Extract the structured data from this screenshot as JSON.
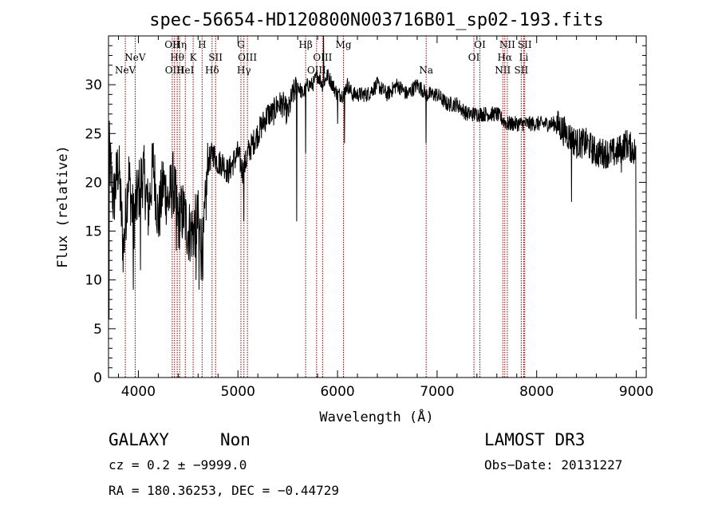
{
  "chart_data": {
    "type": "line",
    "title": "spec-56654-HD120800N003716B01_sp02-193.fits",
    "xlabel": "Wavelength (Å)",
    "ylabel": "Flux (relative)",
    "xlim": [
      3700,
      9100
    ],
    "ylim": [
      0,
      35
    ],
    "x_ticks": [
      4000,
      5000,
      6000,
      7000,
      8000,
      9000
    ],
    "y_ticks": [
      0,
      5,
      10,
      15,
      20,
      25,
      30
    ],
    "grid": false,
    "line_color": "#000000",
    "marker_color": "#8b0000",
    "series": [
      {
        "x": [
          3700,
          3750,
          3800,
          3850,
          3900,
          3950,
          4000,
          4050,
          4100,
          4150,
          4200,
          4250,
          4300,
          4350,
          4400,
          4450,
          4500,
          4550,
          4600,
          4650,
          4700,
          4750,
          4800,
          4850,
          4900,
          4950,
          5000,
          5050,
          5100,
          5150,
          5200,
          5250,
          5300,
          5350,
          5400,
          5450,
          5500,
          5550,
          5600,
          5650,
          5700,
          5750,
          5800,
          5850,
          5900,
          5950,
          6000,
          6050,
          6100,
          6150,
          6200,
          6300,
          6400,
          6500,
          6600,
          6700,
          6800,
          6900,
          7000,
          7100,
          7200,
          7300,
          7400,
          7500,
          7600,
          7700,
          7800,
          7900,
          8000,
          8100,
          8200,
          8300,
          8400,
          8500,
          8600,
          8700,
          8800,
          8900,
          9000
        ],
        "y": [
          24,
          18,
          22,
          13,
          21,
          16,
          19,
          21,
          17,
          22,
          16,
          20,
          18,
          20,
          16,
          17,
          15,
          15,
          16,
          13,
          22,
          23,
          22,
          22,
          21,
          22,
          23,
          21,
          23,
          24,
          25,
          26,
          27,
          27,
          28,
          28,
          27,
          29,
          30,
          29,
          30,
          30,
          31,
          30,
          31,
          30,
          29,
          29,
          30,
          29,
          29,
          29,
          30,
          29,
          30,
          29,
          30,
          29,
          29,
          28,
          28,
          27,
          27,
          27,
          27,
          26,
          26,
          26,
          26,
          26,
          26,
          25,
          24,
          24,
          23,
          23,
          23,
          24,
          23
        ]
      }
    ],
    "spikes": [
      {
        "x": 3705,
        "y": 6
      },
      {
        "x": 3950,
        "y": 9
      },
      {
        "x": 4020,
        "y": 11
      },
      {
        "x": 4380,
        "y": 13
      },
      {
        "x": 4580,
        "y": 10
      },
      {
        "x": 4610,
        "y": 9
      },
      {
        "x": 4630,
        "y": 10
      },
      {
        "x": 5060,
        "y": 16
      },
      {
        "x": 5590,
        "y": 16
      },
      {
        "x": 5680,
        "y": 23
      },
      {
        "x": 5860,
        "y": 35
      },
      {
        "x": 6000,
        "y": 26
      },
      {
        "x": 6070,
        "y": 24
      },
      {
        "x": 6890,
        "y": 24
      },
      {
        "x": 8350,
        "y": 18
      },
      {
        "x": 8850,
        "y": 21
      },
      {
        "x": 9000,
        "y": 6
      }
    ],
    "lines": [
      {
        "x": 3869,
        "label": "NeV"
      },
      {
        "x": 3968,
        "label": "NeV"
      },
      {
        "x": 4340,
        "label": "OII"
      },
      {
        "x": 4363,
        "label": "OIII"
      },
      {
        "x": 4390,
        "label": "Hθ"
      },
      {
        "x": 4415,
        "label": "Hη"
      },
      {
        "x": 4471,
        "label": "HeI"
      },
      {
        "x": 4550,
        "label": "K"
      },
      {
        "x": 4640,
        "label": "H"
      },
      {
        "x": 4740,
        "label": "Hδ"
      },
      {
        "x": 4775,
        "label": "SII"
      },
      {
        "x": 5030,
        "label": "G"
      },
      {
        "x": 5060,
        "label": "Hγ"
      },
      {
        "x": 5095,
        "label": "OIII"
      },
      {
        "x": 5680,
        "label": "Hβ"
      },
      {
        "x": 5790,
        "label": "OIII"
      },
      {
        "x": 5850,
        "label": "OIII"
      },
      {
        "x": 6060,
        "label": "Mg"
      },
      {
        "x": 6890,
        "label": "Na"
      },
      {
        "x": 7370,
        "label": "OI"
      },
      {
        "x": 7430,
        "label": "OI"
      },
      {
        "x": 7660,
        "label": "NII"
      },
      {
        "x": 7680,
        "label": "Hα"
      },
      {
        "x": 7705,
        "label": "NII"
      },
      {
        "x": 7845,
        "label": "SII"
      },
      {
        "x": 7870,
        "label": "Li"
      },
      {
        "x": 7880,
        "label": "SII"
      }
    ]
  },
  "footer": {
    "class_label": "GALAXY",
    "subclass_label": "Non",
    "survey": "LAMOST DR3",
    "cz_text": "cz = 0.2 ± −9999.0",
    "obs_date": "Obs−Date: 20131227",
    "radec": "RA = 180.36253, DEC =  −0.44729"
  }
}
